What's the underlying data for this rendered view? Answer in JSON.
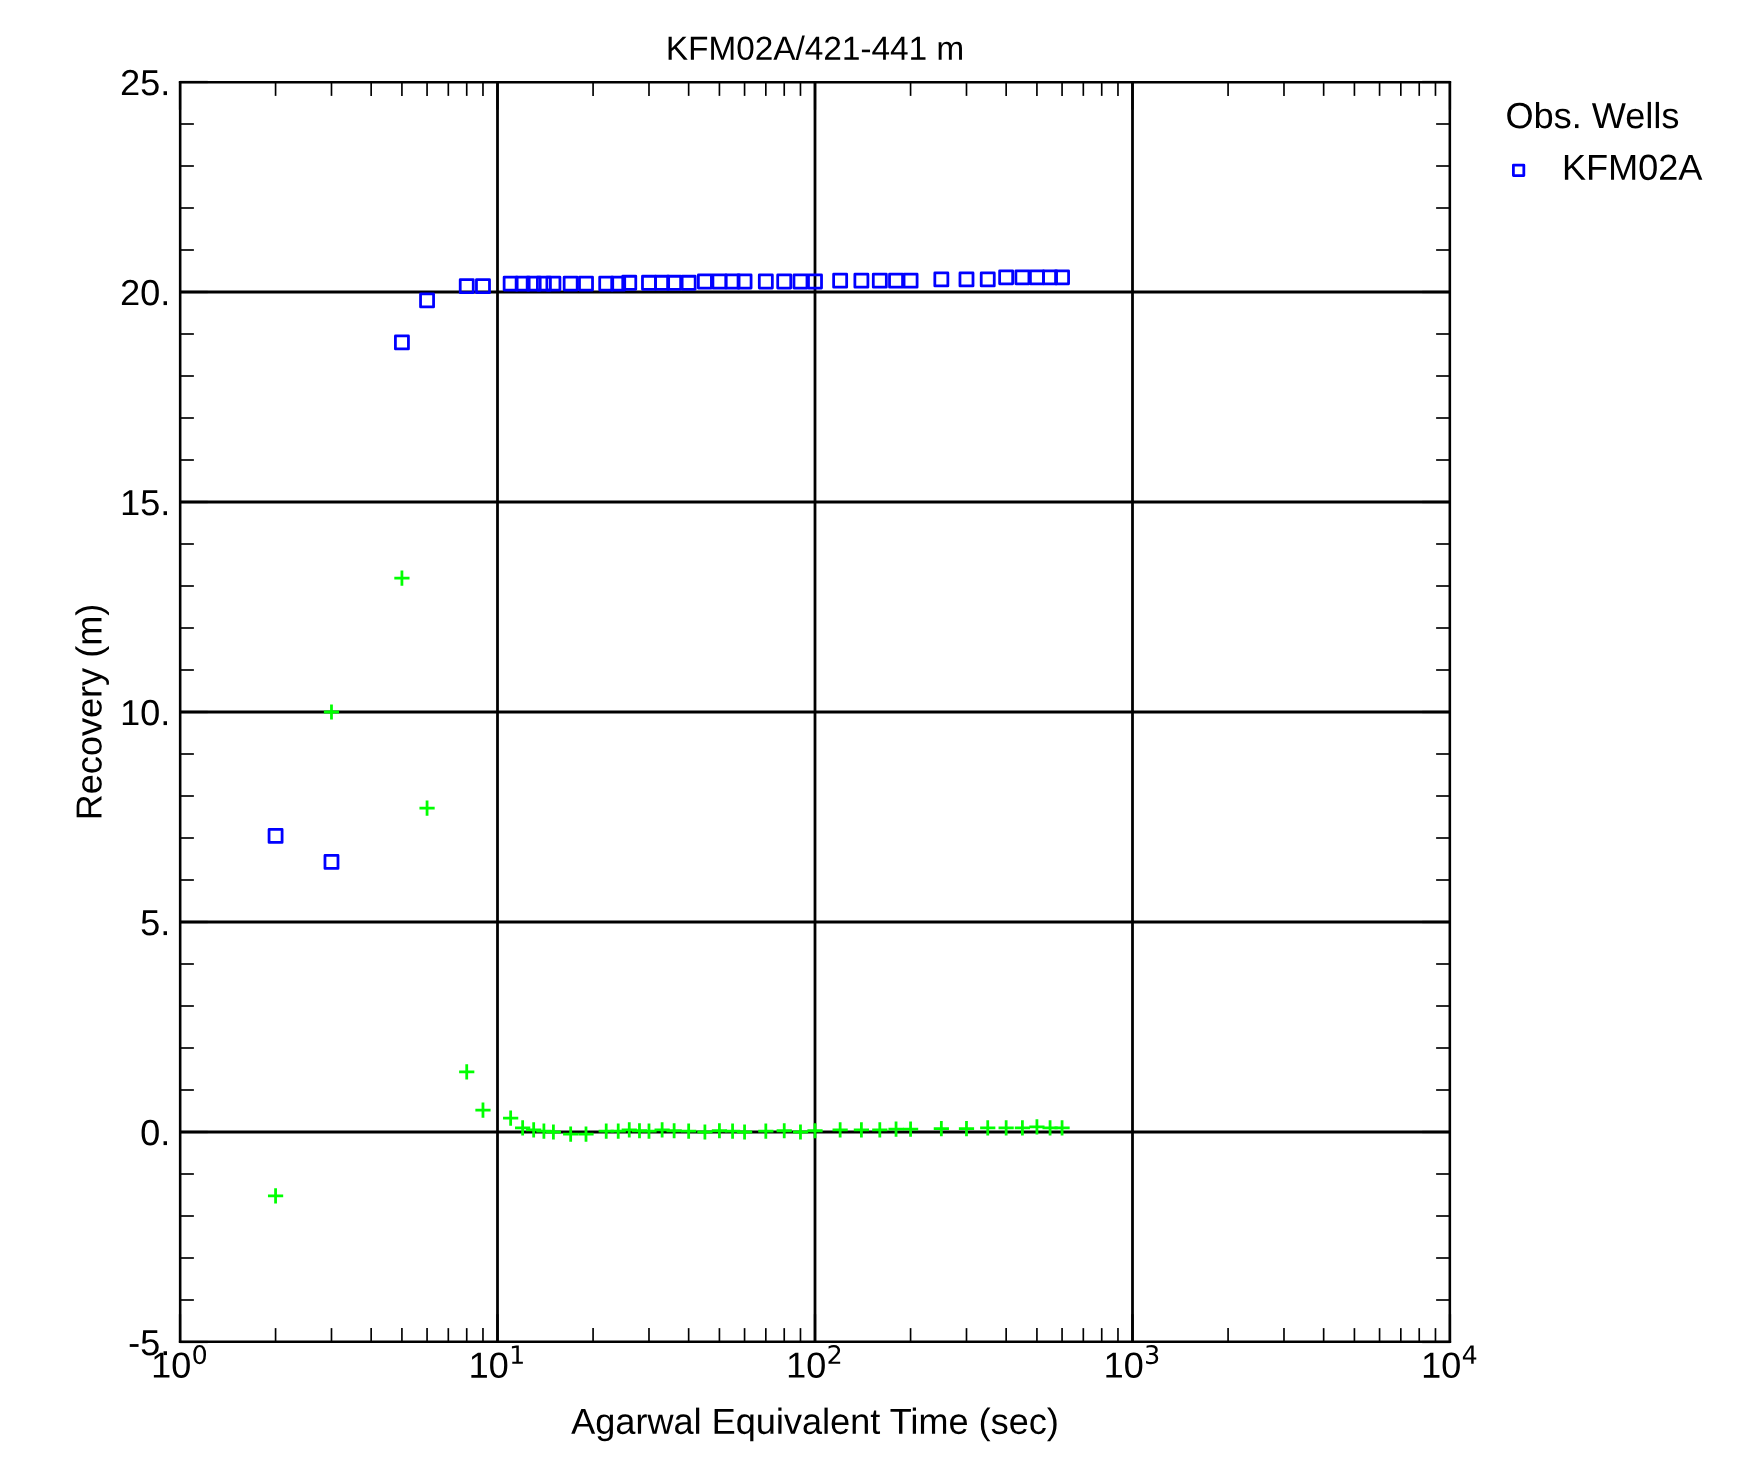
{
  "chart_data": {
    "type": "scatter",
    "title": "KFM02A/421-441 m",
    "xlabel": "Agarwal Equivalent Time (sec)",
    "ylabel": "Recovery (m)",
    "legend_title": "Obs. Wells",
    "legend": "top right",
    "grid": true,
    "log": "x",
    "xlim": [
      1,
      10000
    ],
    "xticks": [
      {
        "value": 1,
        "label": "10$^{0}$"
      },
      {
        "value": 10,
        "label": "10$^{1}$"
      },
      {
        "value": 100,
        "label": "10$^{2}$"
      },
      {
        "value": 1000,
        "label": "10$^{3}$"
      },
      {
        "value": 10000,
        "label": "10$^{4}$"
      }
    ],
    "ylim": [
      -5,
      25
    ],
    "yticks": [
      {
        "value": -5,
        "label": "-5."
      },
      {
        "value": 0,
        "label": "0."
      },
      {
        "value": 5,
        "label": "5."
      },
      {
        "value": 10,
        "label": "10."
      },
      {
        "value": 15,
        "label": "15."
      },
      {
        "value": 20,
        "label": "20."
      },
      {
        "value": 25,
        "label": "25."
      }
    ],
    "series": [
      {
        "name": "KFM02A",
        "color": "#0000ff",
        "marker": "square",
        "x": [
          2,
          3,
          5,
          6,
          8,
          9,
          11,
          12,
          13,
          14,
          15,
          17,
          19,
          22,
          24,
          26,
          30,
          33,
          36,
          40,
          45,
          50,
          55,
          60,
          70,
          80,
          90,
          100,
          120,
          140,
          160,
          180,
          200,
          250,
          300,
          350,
          400,
          450,
          500,
          550,
          600
        ],
        "values": [
          7.05,
          6.43,
          18.8,
          19.8,
          20.14,
          20.14,
          20.2,
          20.2,
          20.2,
          20.2,
          20.2,
          20.2,
          20.2,
          20.2,
          20.2,
          20.22,
          20.22,
          20.22,
          20.22,
          20.22,
          20.25,
          20.25,
          20.25,
          20.25,
          20.25,
          20.25,
          20.25,
          20.25,
          20.27,
          20.27,
          20.27,
          20.27,
          20.27,
          20.3,
          20.3,
          20.3,
          20.35,
          20.35,
          20.35,
          20.35,
          20.35
        ]
      },
      {
        "color": "#00ff00",
        "marker": "cross",
        "x": [
          2,
          3,
          5,
          6,
          8,
          9,
          11,
          12,
          13,
          14,
          15,
          17,
          19,
          22,
          24,
          26,
          28,
          30,
          33,
          36,
          40,
          45,
          50,
          55,
          60,
          70,
          80,
          90,
          100,
          120,
          140,
          160,
          180,
          200,
          250,
          300,
          350,
          400,
          450,
          500,
          550,
          600
        ],
        "values": [
          -1.52,
          10.0,
          13.19,
          7.71,
          1.43,
          0.52,
          0.33,
          0.1,
          0.05,
          0.02,
          0.0,
          -0.05,
          -0.05,
          0.02,
          0.02,
          0.05,
          0.03,
          0.02,
          0.05,
          0.03,
          0.02,
          0.0,
          0.03,
          0.02,
          0.0,
          0.02,
          0.03,
          0.0,
          0.03,
          0.05,
          0.05,
          0.05,
          0.07,
          0.07,
          0.08,
          0.08,
          0.1,
          0.1,
          0.1,
          0.12,
          0.1,
          0.1
        ]
      }
    ]
  }
}
